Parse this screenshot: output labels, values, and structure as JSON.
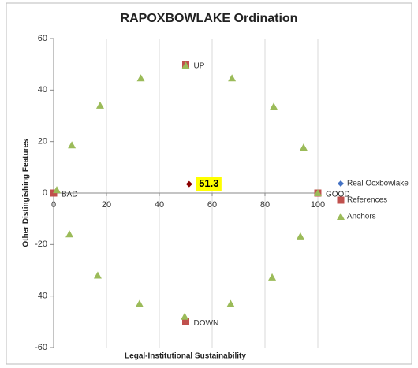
{
  "chart_data": {
    "type": "scatter",
    "title": "RAPOXBOWLAKE  Ordination",
    "x_label": "Legal-Institutional Sustainability",
    "y_label": "Other Distingishing Features",
    "xlim": [
      0,
      100
    ],
    "ylim": [
      -60,
      60
    ],
    "xticks": [
      0,
      20,
      40,
      60,
      80,
      100
    ],
    "yticks": [
      -60,
      -40,
      -20,
      0,
      20,
      40,
      60
    ],
    "grid": "x",
    "legend": "right",
    "series": [
      {
        "name": "Real Ocxbowlake",
        "color": "#4472c4",
        "point_color": "#8b0000",
        "marker": "diamond",
        "x": [
          51.3
        ],
        "values": [
          3.5
        ],
        "labels": [
          "51.3"
        ]
      },
      {
        "name": "References",
        "color": "#c0504d",
        "marker": "square",
        "x": [
          0,
          100,
          50,
          50
        ],
        "values": [
          0,
          0,
          50,
          -50
        ],
        "labels": [
          "BAD",
          "GOOD",
          "UP",
          "DOWN"
        ]
      },
      {
        "name": "Anchors",
        "color": "#9bbb59",
        "marker": "triangle",
        "x": [
          50,
          33,
          17.6,
          6.9,
          1.2,
          6,
          16.7,
          32.5,
          49.6,
          67,
          82.7,
          93.4,
          100,
          94.6,
          83.3,
          67.5
        ],
        "values": [
          49.5,
          44.6,
          34,
          18.6,
          1.2,
          -16,
          -32,
          -43,
          -48,
          -43,
          -32.7,
          -16.8,
          0,
          17.7,
          33.6,
          44.6
        ]
      }
    ]
  }
}
